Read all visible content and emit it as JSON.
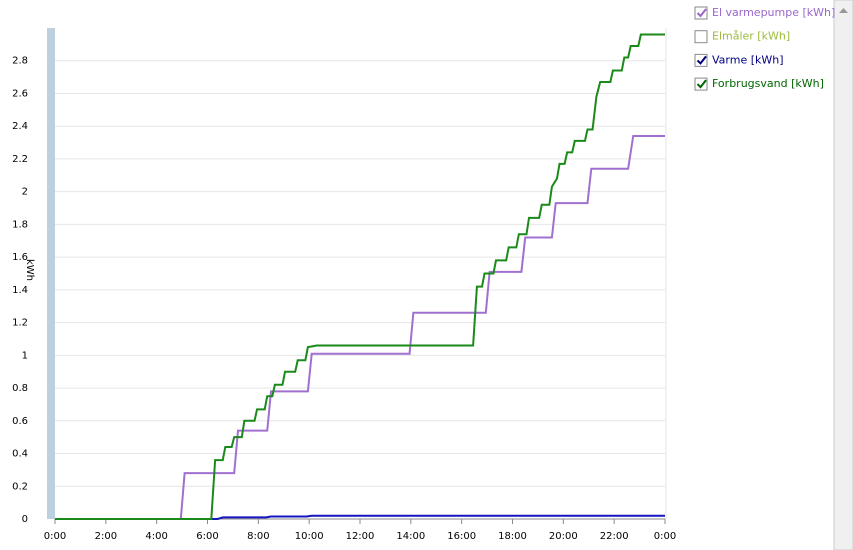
{
  "chart_data": {
    "type": "line",
    "y_label": "kWh",
    "xlim": [
      0,
      24
    ],
    "xticks": [
      {
        "value": 0,
        "label": "0:00"
      },
      {
        "value": 2,
        "label": "2:00"
      },
      {
        "value": 4,
        "label": "4:00"
      },
      {
        "value": 6,
        "label": "6:00"
      },
      {
        "value": 8,
        "label": "8:00"
      },
      {
        "value": 10,
        "label": "10:00"
      },
      {
        "value": 12,
        "label": "12:00"
      },
      {
        "value": 14,
        "label": "14:00"
      },
      {
        "value": 16,
        "label": "16:00"
      },
      {
        "value": 18,
        "label": "18:00"
      },
      {
        "value": 20,
        "label": "20:00"
      },
      {
        "value": 22,
        "label": "22:00"
      },
      {
        "value": 24,
        "label": "0:00"
      }
    ],
    "ylim": [
      0,
      3.0
    ],
    "yticks": [
      0,
      0.2,
      0.4,
      0.6,
      0.8,
      1,
      1.2,
      1.4,
      1.6,
      1.8,
      2,
      2.2,
      2.4,
      2.6,
      2.8
    ],
    "grid": true,
    "legend": "right",
    "series": [
      {
        "name": "El varmepumpe [kWh]",
        "color": "#a070d0",
        "label_color": "#9966cc",
        "checked": true,
        "x": [
          0,
          4.95,
          5.1,
          7.05,
          7.2,
          8.35,
          8.5,
          9.95,
          10.1,
          13.95,
          14.1,
          16.95,
          17.1,
          18.35,
          18.5,
          19.55,
          19.7,
          20.95,
          21.1,
          22.55,
          22.75,
          24
        ],
        "values": [
          0,
          0,
          0.28,
          0.28,
          0.54,
          0.54,
          0.78,
          0.78,
          1.01,
          1.01,
          1.26,
          1.26,
          1.51,
          1.51,
          1.72,
          1.72,
          1.93,
          1.93,
          2.14,
          2.14,
          2.34,
          2.34
        ]
      },
      {
        "name": "Elmåler [kWh]",
        "color": "#9bbb3b",
        "label_color": "#9bbb3b",
        "checked": false
      },
      {
        "name": "Varme [kWh]",
        "color": "#1515c0",
        "label_color": "#000080",
        "checked": true,
        "x": [
          0,
          6.4,
          6.6,
          8.3,
          8.5,
          9.9,
          10.1,
          24
        ],
        "values": [
          0,
          0,
          0.01,
          0.01,
          0.015,
          0.015,
          0.02,
          0.02
        ]
      },
      {
        "name": "Forbrugsvand [kWh]",
        "color": "#1a8a1a",
        "label_color": "#006600",
        "checked": true,
        "x": [
          0,
          6.15,
          6.3,
          6.6,
          6.7,
          6.95,
          7.05,
          7.35,
          7.45,
          7.85,
          7.95,
          8.25,
          8.35,
          8.55,
          8.65,
          8.95,
          9.05,
          9.45,
          9.55,
          9.85,
          9.95,
          10.3,
          16.45,
          16.6,
          16.8,
          16.9,
          17.25,
          17.35,
          17.75,
          17.85,
          18.15,
          18.25,
          18.55,
          18.65,
          19.05,
          19.15,
          19.45,
          19.55,
          19.75,
          19.85,
          20.05,
          20.15,
          20.35,
          20.45,
          20.85,
          20.95,
          21.15,
          21.3,
          21.45,
          21.85,
          21.95,
          22.3,
          22.4,
          22.55,
          22.65,
          22.95,
          23.05,
          24
        ],
        "values": [
          0,
          0,
          0.36,
          0.36,
          0.44,
          0.44,
          0.5,
          0.5,
          0.6,
          0.6,
          0.67,
          0.67,
          0.75,
          0.75,
          0.82,
          0.82,
          0.9,
          0.9,
          0.97,
          0.97,
          1.05,
          1.06,
          1.06,
          1.42,
          1.42,
          1.5,
          1.5,
          1.58,
          1.58,
          1.66,
          1.66,
          1.74,
          1.74,
          1.84,
          1.84,
          1.92,
          1.92,
          2.03,
          2.08,
          2.17,
          2.17,
          2.24,
          2.24,
          2.31,
          2.31,
          2.38,
          2.38,
          2.58,
          2.67,
          2.67,
          2.74,
          2.74,
          2.82,
          2.82,
          2.89,
          2.89,
          2.96,
          2.96
        ]
      }
    ]
  }
}
